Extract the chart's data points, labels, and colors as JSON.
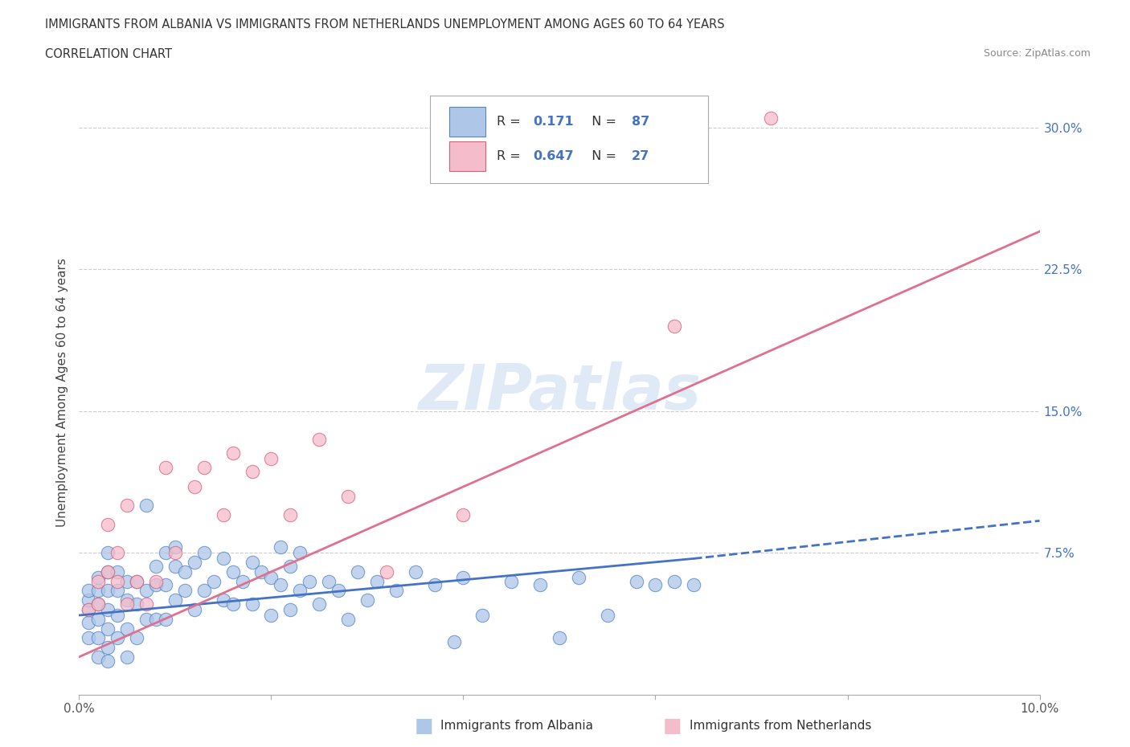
{
  "title_line1": "IMMIGRANTS FROM ALBANIA VS IMMIGRANTS FROM NETHERLANDS UNEMPLOYMENT AMONG AGES 60 TO 64 YEARS",
  "title_line2": "CORRELATION CHART",
  "source_text": "Source: ZipAtlas.com",
  "ylabel": "Unemployment Among Ages 60 to 64 years",
  "xlim": [
    0.0,
    0.1
  ],
  "ylim": [
    0.0,
    0.32
  ],
  "xtick_positions": [
    0.0,
    0.02,
    0.04,
    0.06,
    0.08,
    0.1
  ],
  "xtick_labels": [
    "0.0%",
    "",
    "",
    "",
    "",
    "10.0%"
  ],
  "yticks_right": [
    0.075,
    0.15,
    0.225,
    0.3
  ],
  "ytick_labels_right": [
    "7.5%",
    "15.0%",
    "22.5%",
    "30.0%"
  ],
  "albania_color": "#aec6e8",
  "albania_edge_color": "#5585c5",
  "netherlands_color": "#f5bccb",
  "netherlands_edge_color": "#d9607a",
  "albania_line_color": "#4472c4",
  "netherlands_line_color": "#e07090",
  "legend_r_albania": "0.171",
  "legend_n_albania": "87",
  "legend_r_netherlands": "0.647",
  "legend_n_netherlands": "27",
  "watermark": "ZIPatlas",
  "albania_scatter_x": [
    0.001,
    0.001,
    0.001,
    0.001,
    0.001,
    0.002,
    0.002,
    0.002,
    0.002,
    0.002,
    0.002,
    0.003,
    0.003,
    0.003,
    0.003,
    0.003,
    0.003,
    0.003,
    0.004,
    0.004,
    0.004,
    0.004,
    0.005,
    0.005,
    0.005,
    0.005,
    0.006,
    0.006,
    0.006,
    0.007,
    0.007,
    0.007,
    0.008,
    0.008,
    0.008,
    0.009,
    0.009,
    0.009,
    0.01,
    0.01,
    0.01,
    0.011,
    0.011,
    0.012,
    0.012,
    0.013,
    0.013,
    0.014,
    0.015,
    0.015,
    0.016,
    0.016,
    0.017,
    0.018,
    0.018,
    0.019,
    0.02,
    0.02,
    0.021,
    0.021,
    0.022,
    0.022,
    0.023,
    0.023,
    0.024,
    0.025,
    0.026,
    0.027,
    0.028,
    0.029,
    0.03,
    0.031,
    0.033,
    0.035,
    0.037,
    0.039,
    0.04,
    0.042,
    0.045,
    0.048,
    0.05,
    0.052,
    0.055,
    0.058,
    0.06,
    0.062,
    0.064
  ],
  "albania_scatter_y": [
    0.03,
    0.038,
    0.045,
    0.05,
    0.055,
    0.02,
    0.03,
    0.04,
    0.048,
    0.055,
    0.062,
    0.018,
    0.025,
    0.035,
    0.045,
    0.055,
    0.065,
    0.075,
    0.03,
    0.042,
    0.055,
    0.065,
    0.02,
    0.035,
    0.05,
    0.06,
    0.03,
    0.048,
    0.06,
    0.04,
    0.055,
    0.1,
    0.04,
    0.058,
    0.068,
    0.04,
    0.058,
    0.075,
    0.05,
    0.068,
    0.078,
    0.055,
    0.065,
    0.045,
    0.07,
    0.055,
    0.075,
    0.06,
    0.05,
    0.072,
    0.048,
    0.065,
    0.06,
    0.048,
    0.07,
    0.065,
    0.042,
    0.062,
    0.058,
    0.078,
    0.045,
    0.068,
    0.055,
    0.075,
    0.06,
    0.048,
    0.06,
    0.055,
    0.04,
    0.065,
    0.05,
    0.06,
    0.055,
    0.065,
    0.058,
    0.028,
    0.062,
    0.042,
    0.06,
    0.058,
    0.03,
    0.062,
    0.042,
    0.06,
    0.058,
    0.06,
    0.058
  ],
  "netherlands_scatter_x": [
    0.001,
    0.002,
    0.002,
    0.003,
    0.003,
    0.004,
    0.004,
    0.005,
    0.005,
    0.006,
    0.007,
    0.008,
    0.009,
    0.01,
    0.012,
    0.013,
    0.015,
    0.016,
    0.018,
    0.02,
    0.022,
    0.025,
    0.028,
    0.032,
    0.04,
    0.062,
    0.072
  ],
  "netherlands_scatter_y": [
    0.045,
    0.048,
    0.06,
    0.065,
    0.09,
    0.06,
    0.075,
    0.048,
    0.1,
    0.06,
    0.048,
    0.06,
    0.12,
    0.075,
    0.11,
    0.12,
    0.095,
    0.128,
    0.118,
    0.125,
    0.095,
    0.135,
    0.105,
    0.065,
    0.095,
    0.195,
    0.305
  ],
  "albania_line_x0": 0.0,
  "albania_line_x_solid_end": 0.064,
  "albania_line_x1": 0.1,
  "albania_line_y0": 0.042,
  "albania_line_y_solid_end": 0.072,
  "albania_line_y1": 0.092,
  "netherlands_line_x0": 0.0,
  "netherlands_line_x1": 0.1,
  "netherlands_line_y0": 0.02,
  "netherlands_line_y1": 0.245
}
